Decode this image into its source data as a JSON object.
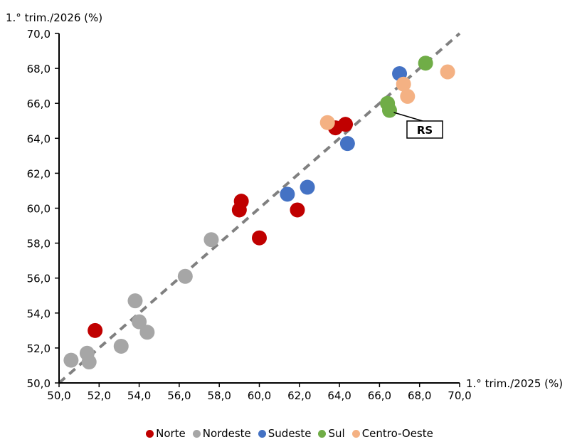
{
  "chart_data": {
    "type": "scatter",
    "xlabel": "1.° trim./2025 (%)",
    "ylabel": "1.° trim./2026 (%)",
    "xlim": [
      50,
      70
    ],
    "ylim": [
      50,
      70
    ],
    "xticks": [
      "50,0",
      "52,0",
      "54,0",
      "56,0",
      "58,0",
      "60,0",
      "62,0",
      "64,0",
      "66,0",
      "68,0",
      "70,0"
    ],
    "yticks": [
      "50,0",
      "52,0",
      "54,0",
      "56,0",
      "58,0",
      "60,0",
      "62,0",
      "64,0",
      "66,0",
      "68,0",
      "70,0"
    ],
    "grid": false,
    "legend_position": "bottom",
    "reference_line": {
      "x": [
        50,
        70
      ],
      "y": [
        50,
        70
      ],
      "color": "#808080",
      "style": "dashed"
    },
    "annotation": {
      "text": "RS",
      "x": 66.5,
      "y": 65.6
    },
    "series": [
      {
        "name": "Norte",
        "color": "#C00000",
        "points": [
          [
            51.8,
            53.0
          ],
          [
            59.0,
            59.9
          ],
          [
            59.1,
            60.4
          ],
          [
            60.0,
            58.3
          ],
          [
            61.9,
            59.9
          ],
          [
            63.8,
            64.6
          ],
          [
            64.3,
            64.8
          ]
        ]
      },
      {
        "name": "Nordeste",
        "color": "#A6A6A6",
        "points": [
          [
            50.6,
            51.3
          ],
          [
            51.4,
            51.7
          ],
          [
            51.5,
            51.2
          ],
          [
            53.1,
            52.1
          ],
          [
            53.8,
            54.7
          ],
          [
            54.0,
            53.5
          ],
          [
            54.4,
            52.9
          ],
          [
            56.3,
            56.1
          ],
          [
            57.6,
            58.2
          ]
        ]
      },
      {
        "name": "Sudeste",
        "color": "#4472C4",
        "points": [
          [
            61.4,
            60.8
          ],
          [
            62.4,
            61.2
          ],
          [
            64.4,
            63.7
          ],
          [
            67.0,
            67.7
          ]
        ]
      },
      {
        "name": "Sul",
        "color": "#70AD47",
        "points": [
          [
            66.4,
            66.0
          ],
          [
            66.5,
            65.6
          ],
          [
            68.3,
            68.3
          ]
        ]
      },
      {
        "name": "Centro-Oeste",
        "color": "#F4B183",
        "points": [
          [
            63.4,
            64.9
          ],
          [
            67.2,
            67.1
          ],
          [
            67.4,
            66.4
          ],
          [
            69.4,
            67.8
          ]
        ]
      }
    ]
  }
}
